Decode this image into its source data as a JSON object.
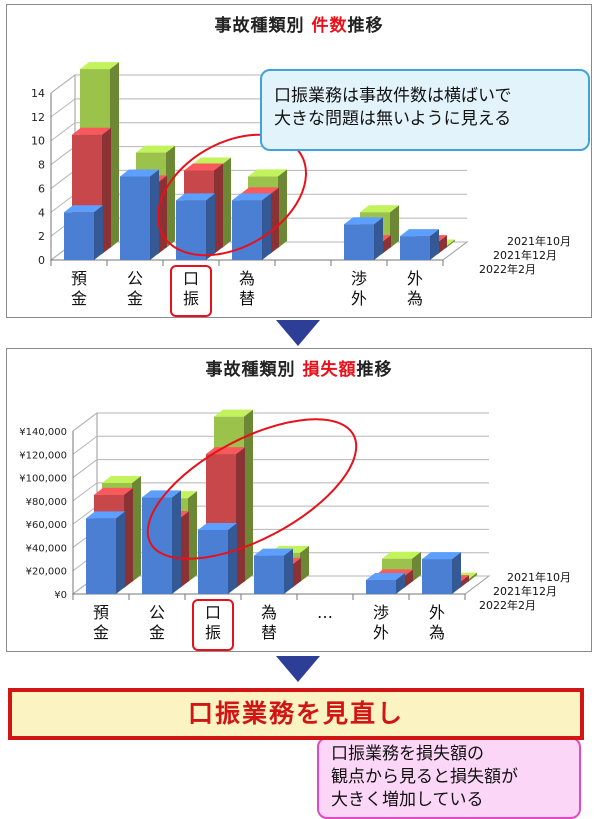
{
  "colors": {
    "series_2021_10": "#4a7fd4",
    "series_2021_12": "#c7474a",
    "series_2022_2": "#9bc24a",
    "arrow": "#2c3e96",
    "highlight": "#e8101a",
    "conclusion_border": "#d11414",
    "conclusion_bg": "#fbf3c2",
    "callout1_bg": "#e2f3fb",
    "callout2_bg": "#fbd6f6"
  },
  "chart1": {
    "title_prefix": "事故種類別",
    "title_highlight": "件数",
    "title_suffix": "推移",
    "callout_lines": [
      "口振業務は事故件数は横ばいで",
      "大きな問題は無いように見える"
    ]
  },
  "chart2": {
    "title_prefix": "事故種類別",
    "title_highlight": "損失額",
    "title_suffix": "推移",
    "callout_lines": [
      "口振業務を損失額の",
      "観点から見ると損失額が",
      "大きく増加している"
    ]
  },
  "conclusion": "口振業務を見直し",
  "chart_data": [
    {
      "type": "bar",
      "title": "事故種類別 件数推移",
      "categories": [
        [
          "預",
          "金"
        ],
        [
          "公",
          "金"
        ],
        [
          "口",
          "振"
        ],
        [
          "為",
          "替"
        ],
        [
          "",
          ""
        ],
        [
          "渉",
          "外"
        ],
        [
          "外",
          "為"
        ]
      ],
      "highlighted_category": 2,
      "yticks": [
        "0",
        "2",
        "4",
        "6",
        "8",
        "10",
        "12",
        "14"
      ],
      "ylim": [
        0,
        14
      ],
      "series": [
        {
          "name": "2021年10月",
          "values": [
            4,
            7,
            5,
            5,
            null,
            3,
            2
          ]
        },
        {
          "name": "2021年12月",
          "values": [
            10,
            6,
            7,
            5,
            null,
            1,
            1
          ]
        },
        {
          "name": "2022年2月",
          "values": [
            15,
            8,
            7,
            6,
            null,
            3,
            0
          ]
        }
      ]
    },
    {
      "type": "bar",
      "title": "事故種類別 損失額推移",
      "categories": [
        [
          "預",
          "金"
        ],
        [
          "公",
          "金"
        ],
        [
          "口",
          "振"
        ],
        [
          "為",
          "替"
        ],
        [
          "…",
          ""
        ],
        [
          "渉",
          "外"
        ],
        [
          "外",
          "為"
        ]
      ],
      "highlighted_category": 2,
      "yticks": [
        "¥0",
        "¥20,000",
        "¥40,000",
        "¥60,000",
        "¥80,000",
        "¥100,000",
        "¥120,000",
        "¥140,000"
      ],
      "ylim": [
        0,
        140000
      ],
      "series": [
        {
          "name": "2021年10月",
          "values": [
            65000,
            83000,
            55000,
            33000,
            null,
            12000,
            30000
          ]
        },
        {
          "name": "2021年12月",
          "values": [
            80000,
            60000,
            115000,
            20000,
            null,
            10000,
            5000
          ]
        },
        {
          "name": "2022年2月",
          "values": [
            85000,
            72000,
            142000,
            25000,
            null,
            20000,
            2000
          ]
        }
      ]
    }
  ]
}
